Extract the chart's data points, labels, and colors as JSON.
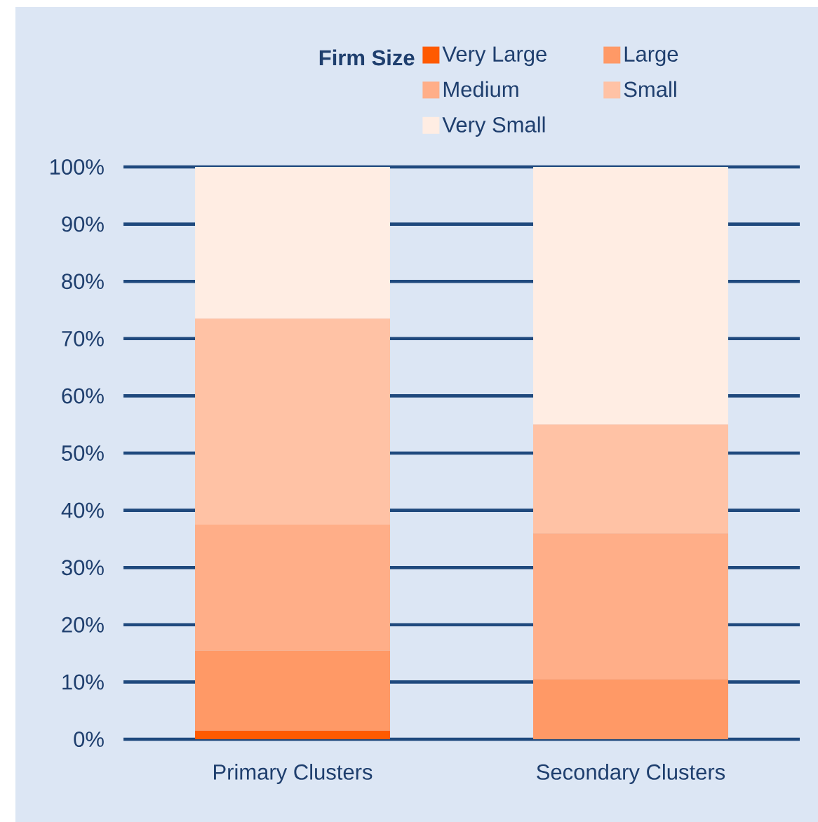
{
  "chart_data": {
    "type": "bar",
    "stacked": true,
    "legend_title": "Firm Size",
    "categories": [
      "Primary Clusters",
      "Secondary Clusters"
    ],
    "series": [
      {
        "name": "Very Large",
        "color": "#ff5a00",
        "values": [
          1.5,
          0
        ]
      },
      {
        "name": "Large",
        "color": "#ff9966",
        "values": [
          14,
          10.5
        ]
      },
      {
        "name": "Medium",
        "color": "#ffae88",
        "values": [
          22,
          25.5
        ]
      },
      {
        "name": "Small",
        "color": "#ffc2a5",
        "values": [
          36,
          19
        ]
      },
      {
        "name": "Very Small",
        "color": "#ffede3",
        "values": [
          26.5,
          45
        ]
      }
    ],
    "ylim": [
      0,
      100
    ],
    "yticks": [
      {
        "value": 0,
        "label": "0%"
      },
      {
        "value": 10,
        "label": "10%"
      },
      {
        "value": 20,
        "label": "20%"
      },
      {
        "value": 30,
        "label": "30%"
      },
      {
        "value": 40,
        "label": "40%"
      },
      {
        "value": 50,
        "label": "50%"
      },
      {
        "value": 60,
        "label": "60%"
      },
      {
        "value": 70,
        "label": "70%"
      },
      {
        "value": 80,
        "label": "80%"
      },
      {
        "value": 90,
        "label": "90%"
      },
      {
        "value": 100,
        "label": "100%"
      }
    ],
    "grid": "y",
    "legend": "top"
  }
}
